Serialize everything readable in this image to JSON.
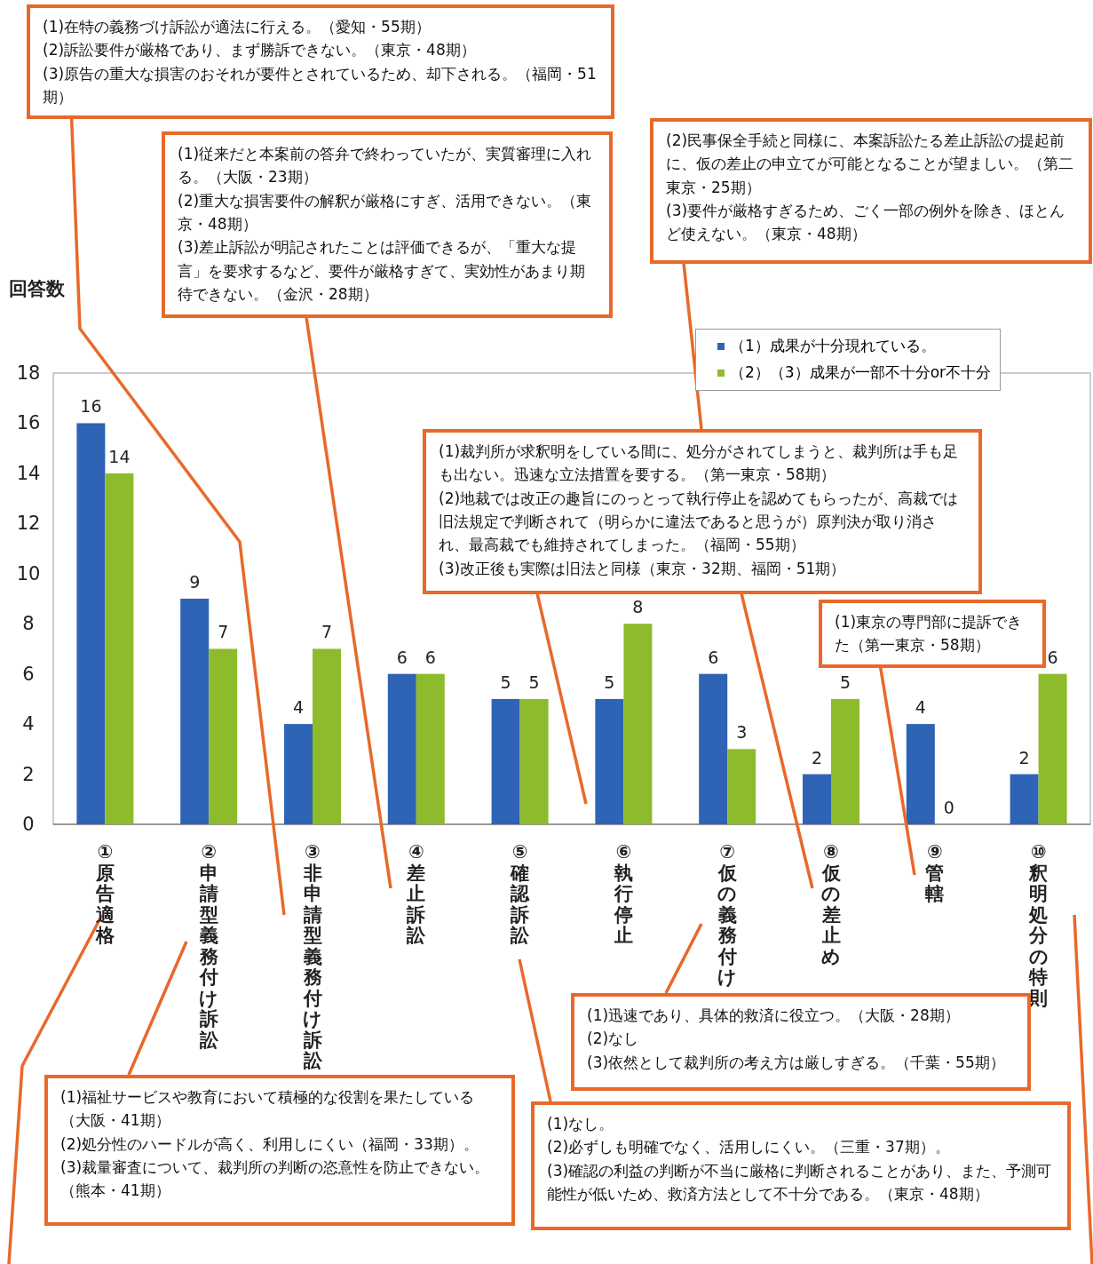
{
  "chart_data": {
    "type": "bar",
    "ylabel": "回答数",
    "categories": [
      "①原告適格",
      "②申請型義務付け訴訟",
      "③非申請型義務付け訴訟",
      "④差止訴訟",
      "⑤確認訴訟",
      "⑥執行停止",
      "⑦仮の義務付け",
      "⑧仮の差止め",
      "⑨管轄",
      "⑩釈明処分の特則"
    ],
    "series": [
      {
        "name": "（1）成果が十分現れている。",
        "color": "#2e63b5",
        "values": [
          16,
          9,
          4,
          6,
          5,
          5,
          6,
          2,
          4,
          2
        ]
      },
      {
        "name": "（2）（3）成果が一部不十分or不十分",
        "color": "#8dbb2b",
        "values": [
          14,
          7,
          7,
          6,
          5,
          8,
          3,
          5,
          0,
          6
        ]
      }
    ],
    "ylim": [
      0,
      18
    ],
    "yticks": [
      0,
      2,
      4,
      6,
      8,
      10,
      12,
      14,
      16,
      18
    ],
    "data_labels": true,
    "legend": "top right",
    "grid": false,
    "annotations": [
      "(1)在特の義務づけ訴訟が適法に行える。（愛知・55期）\n(2)訴訟要件が厳格であり、まず勝訴できない。（東京・48期）\n(3)原告の重大な損害のおそれが要件とされているため、却下される。（福岡・51期）",
      "(1)従来だと本案前の答弁で終わっていたが、実質審理に入れる。（大阪・23期）\n(2)重大な損害要件の解釈が厳格にすぎ、活用できない。（東京・48期）\n(3)差止訴訟が明記されたことは評価できるが、「重大な提言」を要求するなど、要件が厳格すぎて、実効性があまり期待できない。（金沢・28期）",
      "(2)民事保全手続と同様に、本案訴訟たる差止訴訟の提起前に、仮の差止の申立てが可能となることが望ましい。（第二東京・25期）\n(3)要件が厳格すぎるため、ごく一部の例外を除き、ほとんど使えない。（東京・48期）",
      "(1)裁判所が求釈明をしている間に、処分がされてしまうと、裁判所は手も足も出ない。迅速な立法措置を要する。（第一東京・58期）\n(2)地裁では改正の趣旨にのっとって執行停止を認めてもらったが、高裁では旧法規定で判断されて（明らかに違法であると思うが）原判決が取り消され、最高裁でも維持されてしまった。（福岡・55期）\n(3)改正後も実際は旧法と同様（東京・32期、福岡・51期）",
      "(1)東京の専門部に提訴できた（第一東京・58期）",
      "(1)迅速であり、具体的救済に役立つ。（大阪・28期）\n(2)なし\n(3)依然として裁判所の考え方は厳しすぎる。（千葉・55期）",
      "(1)福祉サービスや教育において積極的な役割を果たしている（大阪・41期）\n(2)処分性のハードルが高く、利用しにくい（福岡・33期）。\n(3)裁量審査について、裁判所の判断の恣意性を防止できない。（熊本・41期）",
      "(1)なし。\n(2)必ずしも明確でなく、活用しにくい。（三重・37期）。\n(3)確認の利益の判断が不当に厳格に判断されることがあり、また、予測可能性が低いため、救済方法として不十分である。（東京・48期）"
    ]
  }
}
